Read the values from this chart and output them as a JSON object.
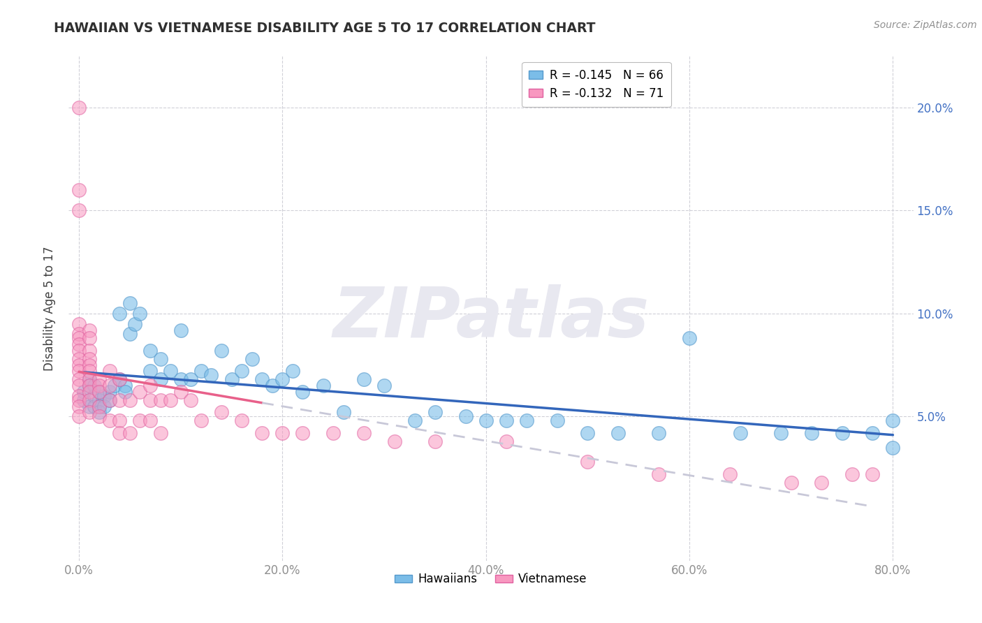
{
  "title": "HAWAIIAN VS VIETNAMESE DISABILITY AGE 5 TO 17 CORRELATION CHART",
  "source_text": "Source: ZipAtlas.com",
  "ylabel": "Disability Age 5 to 17",
  "xlim": [
    -0.01,
    0.82
  ],
  "ylim": [
    -0.02,
    0.225
  ],
  "xtick_labels": [
    "0.0%",
    "20.0%",
    "40.0%",
    "60.0%",
    "80.0%"
  ],
  "xtick_vals": [
    0.0,
    0.2,
    0.4,
    0.6,
    0.8
  ],
  "ytick_labels": [
    "5.0%",
    "10.0%",
    "15.0%",
    "20.0%"
  ],
  "ytick_vals": [
    0.05,
    0.1,
    0.15,
    0.2
  ],
  "hawaiian_color": "#7bbde8",
  "hawaiian_edge_color": "#5599cc",
  "vietnamese_color": "#f898c0",
  "vietnamese_edge_color": "#e060a0",
  "trend_hawaiian_color": "#3366bb",
  "trend_vietnamese_solid_color": "#e8608a",
  "trend_vietnamese_dash_color": "#c8c8d8",
  "watermark_text": "ZIPatlas",
  "watermark_color": "#e8e8f0",
  "legend_R_hawaiian": "R = -0.145",
  "legend_N_hawaiian": "N = 66",
  "legend_R_vietnamese": "R = -0.132",
  "legend_N_vietnamese": "N = 71",
  "background_color": "#ffffff",
  "grid_color": "#d0d0d8",
  "title_color": "#303030",
  "axis_label_color": "#404040",
  "tick_color": "#909090",
  "right_tick_color": "#4472c4",
  "source_color": "#909090",
  "hawaiian_scatter": {
    "x": [
      0.005,
      0.005,
      0.01,
      0.01,
      0.01,
      0.015,
      0.015,
      0.015,
      0.02,
      0.02,
      0.02,
      0.02,
      0.025,
      0.025,
      0.03,
      0.03,
      0.035,
      0.04,
      0.04,
      0.045,
      0.045,
      0.05,
      0.05,
      0.055,
      0.06,
      0.07,
      0.07,
      0.08,
      0.08,
      0.09,
      0.1,
      0.1,
      0.11,
      0.12,
      0.13,
      0.14,
      0.15,
      0.16,
      0.17,
      0.18,
      0.19,
      0.2,
      0.21,
      0.22,
      0.24,
      0.26,
      0.28,
      0.3,
      0.33,
      0.35,
      0.38,
      0.4,
      0.42,
      0.44,
      0.47,
      0.5,
      0.53,
      0.57,
      0.6,
      0.65,
      0.69,
      0.72,
      0.75,
      0.78,
      0.8,
      0.8
    ],
    "y": [
      0.058,
      0.062,
      0.068,
      0.065,
      0.055,
      0.065,
      0.06,
      0.055,
      0.062,
      0.058,
      0.055,
      0.052,
      0.06,
      0.055,
      0.062,
      0.058,
      0.065,
      0.1,
      0.068,
      0.065,
      0.062,
      0.09,
      0.105,
      0.095,
      0.1,
      0.072,
      0.082,
      0.068,
      0.078,
      0.072,
      0.068,
      0.092,
      0.068,
      0.072,
      0.07,
      0.082,
      0.068,
      0.072,
      0.078,
      0.068,
      0.065,
      0.068,
      0.072,
      0.062,
      0.065,
      0.052,
      0.068,
      0.065,
      0.048,
      0.052,
      0.05,
      0.048,
      0.048,
      0.048,
      0.048,
      0.042,
      0.042,
      0.042,
      0.088,
      0.042,
      0.042,
      0.042,
      0.042,
      0.042,
      0.035,
      0.048
    ]
  },
  "vietnamese_scatter": {
    "x": [
      0.0,
      0.0,
      0.0,
      0.0,
      0.0,
      0.0,
      0.0,
      0.0,
      0.0,
      0.0,
      0.0,
      0.0,
      0.0,
      0.0,
      0.0,
      0.0,
      0.0,
      0.01,
      0.01,
      0.01,
      0.01,
      0.01,
      0.01,
      0.01,
      0.01,
      0.01,
      0.01,
      0.01,
      0.02,
      0.02,
      0.02,
      0.02,
      0.02,
      0.03,
      0.03,
      0.03,
      0.03,
      0.04,
      0.04,
      0.04,
      0.04,
      0.05,
      0.05,
      0.06,
      0.06,
      0.07,
      0.07,
      0.07,
      0.08,
      0.08,
      0.09,
      0.1,
      0.11,
      0.12,
      0.14,
      0.16,
      0.18,
      0.2,
      0.22,
      0.25,
      0.28,
      0.31,
      0.35,
      0.42,
      0.5,
      0.57,
      0.64,
      0.7,
      0.73,
      0.76,
      0.78
    ],
    "y": [
      0.2,
      0.16,
      0.15,
      0.095,
      0.09,
      0.088,
      0.085,
      0.082,
      0.078,
      0.075,
      0.072,
      0.068,
      0.065,
      0.06,
      0.058,
      0.055,
      0.05,
      0.092,
      0.088,
      0.082,
      0.078,
      0.075,
      0.072,
      0.068,
      0.065,
      0.062,
      0.058,
      0.052,
      0.068,
      0.065,
      0.062,
      0.055,
      0.05,
      0.072,
      0.065,
      0.058,
      0.048,
      0.068,
      0.058,
      0.048,
      0.042,
      0.058,
      0.042,
      0.062,
      0.048,
      0.065,
      0.058,
      0.048,
      0.058,
      0.042,
      0.058,
      0.062,
      0.058,
      0.048,
      0.052,
      0.048,
      0.042,
      0.042,
      0.042,
      0.042,
      0.042,
      0.038,
      0.038,
      0.038,
      0.028,
      0.022,
      0.022,
      0.018,
      0.018,
      0.022,
      0.022
    ]
  }
}
